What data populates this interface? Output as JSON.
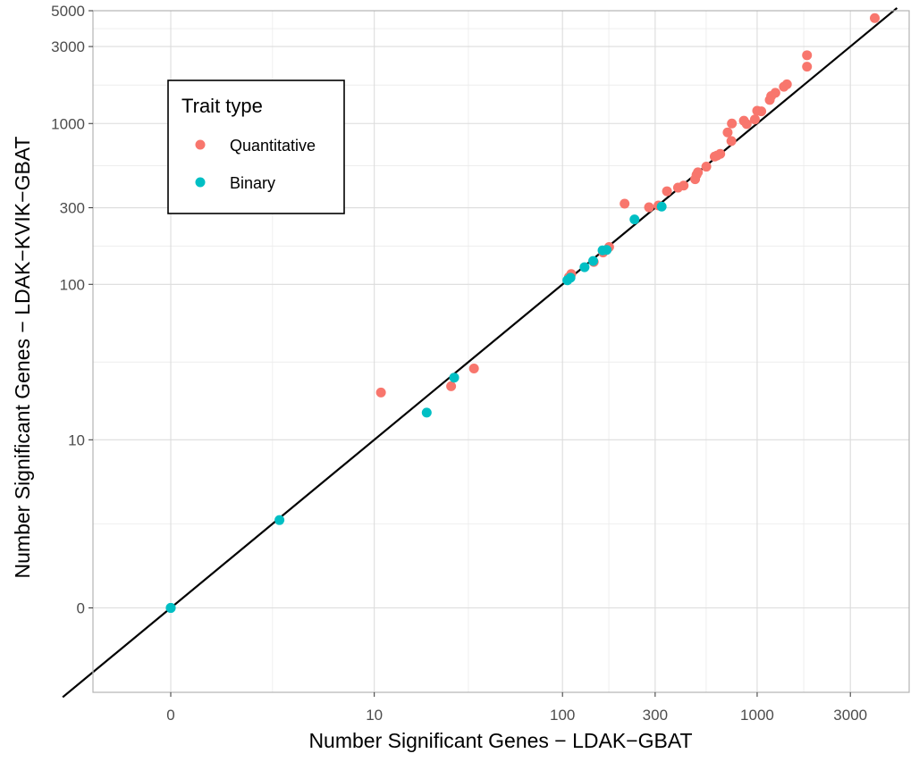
{
  "chart_data": {
    "type": "scatter",
    "title": "",
    "xlabel": "Number Significant Genes − LDAK−GBAT",
    "ylabel": "Number Significant Genes − LDAK−KVIK−GBAT",
    "x_scale": "log1p",
    "y_scale": "log1p",
    "x_ticks": [
      0,
      10,
      100,
      300,
      1000,
      3000
    ],
    "x_tick_labels": [
      "0",
      "10",
      "100",
      "300",
      "1000",
      "3000"
    ],
    "y_ticks": [
      0,
      10,
      100,
      300,
      1000,
      3000,
      5000
    ],
    "y_tick_labels": [
      "0",
      "10",
      "100",
      "300",
      "1000",
      "3000",
      "5000"
    ],
    "xlim": [
      -0.6,
      6000
    ],
    "ylim": [
      -0.7,
      5000
    ],
    "grid": true,
    "reference_line": "y = x",
    "legend": {
      "title": "Trait type",
      "position": "top-left",
      "entries": [
        {
          "label": "Quantitative",
          "color": "#F8766D"
        },
        {
          "label": "Binary",
          "color": "#00BFC4"
        }
      ]
    },
    "series": [
      {
        "name": "Quantitative",
        "color": "#F8766D",
        "points": [
          [
            10.9,
            20.6
          ],
          [
            26.2,
            22.6
          ],
          [
            34.6,
            29.4
          ],
          [
            108,
            111
          ],
          [
            111,
            116
          ],
          [
            145,
            138
          ],
          [
            162,
            158
          ],
          [
            174,
            171
          ],
          [
            209,
            318
          ],
          [
            279,
            302
          ],
          [
            312,
            310
          ],
          [
            393,
            400
          ],
          [
            420,
            412
          ],
          [
            345,
            380
          ],
          [
            481,
            451
          ],
          [
            489,
            480
          ],
          [
            497,
            498
          ],
          [
            549,
            540
          ],
          [
            606,
            624
          ],
          [
            623,
            633
          ],
          [
            647,
            648
          ],
          [
            706,
            880
          ],
          [
            738,
            779
          ],
          [
            742,
            1000
          ],
          [
            855,
            1040
          ],
          [
            884,
            992
          ],
          [
            974,
            1060
          ],
          [
            1000,
            1200
          ],
          [
            1050,
            1190
          ],
          [
            1160,
            1400
          ],
          [
            1180,
            1480
          ],
          [
            1240,
            1550
          ],
          [
            1370,
            1690
          ],
          [
            1420,
            1750
          ],
          [
            1800,
            2250
          ],
          [
            1800,
            2650
          ],
          [
            4000,
            4500
          ]
        ]
      },
      {
        "name": "Binary",
        "color": "#00BFC4",
        "points": [
          [
            0,
            0
          ],
          [
            0,
            0
          ],
          [
            0,
            0
          ],
          [
            2.6,
            2.5
          ],
          [
            19.4,
            15.2
          ],
          [
            27.2,
            25.7
          ],
          [
            106,
            106
          ],
          [
            110,
            110
          ],
          [
            130,
            128
          ],
          [
            144,
            140
          ],
          [
            161,
            163
          ],
          [
            169,
            164
          ],
          [
            235,
            254
          ],
          [
            324,
            305
          ]
        ]
      }
    ]
  }
}
